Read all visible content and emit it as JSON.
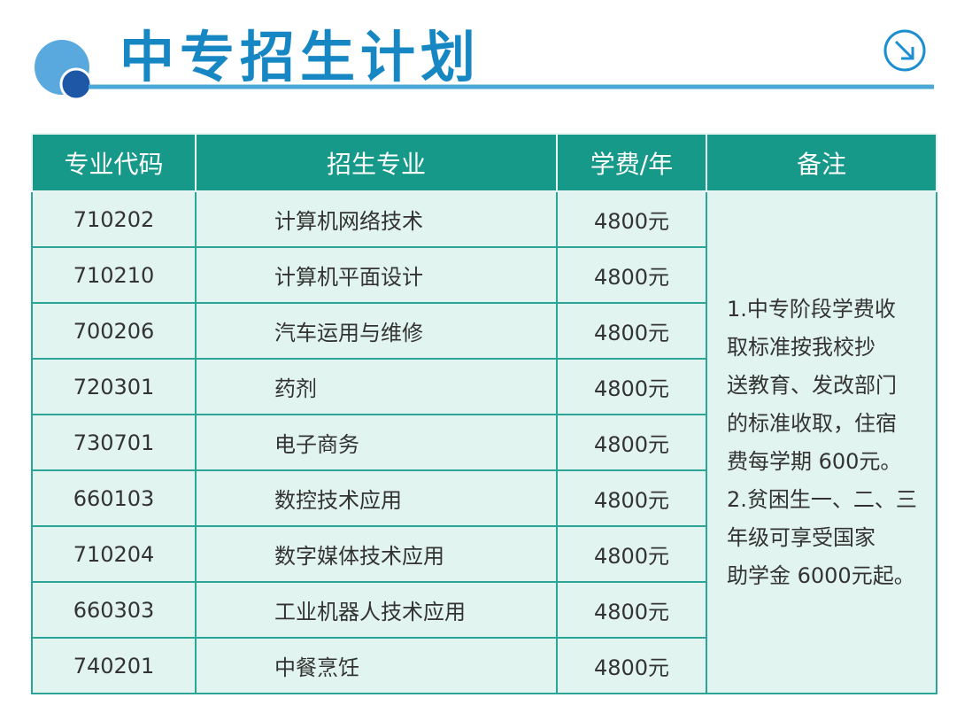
{
  "header": {
    "title": "中专招生计划"
  },
  "table": {
    "columns": [
      "专业代码",
      "招生专业",
      "学费/年",
      "备注"
    ],
    "rows": [
      [
        "710202",
        "计算机网络技术",
        "4800元"
      ],
      [
        "710210",
        "计算机平面设计",
        "4800元"
      ],
      [
        "700206",
        "汽车运用与维修",
        "4800元"
      ],
      [
        "720301",
        "药剂",
        "4800元"
      ],
      [
        "730701",
        "电子商务",
        "4800元"
      ],
      [
        "660103",
        "数控技术应用",
        "4800元"
      ],
      [
        "710204",
        "数字媒体技术应用",
        "4800元"
      ],
      [
        "660303",
        "工业机器人技术应用",
        "4800元"
      ],
      [
        "740201",
        "中餐烹饪",
        "4800元"
      ]
    ],
    "note": [
      "1.中专阶段学费收",
      "取标准按我校抄",
      "送教育、发改部门",
      "的标准收取，住宿",
      "费每学期 600元。",
      "2.贫困生一、二、三",
      "年级可享受国家",
      "助学金 6000元起。"
    ]
  }
}
